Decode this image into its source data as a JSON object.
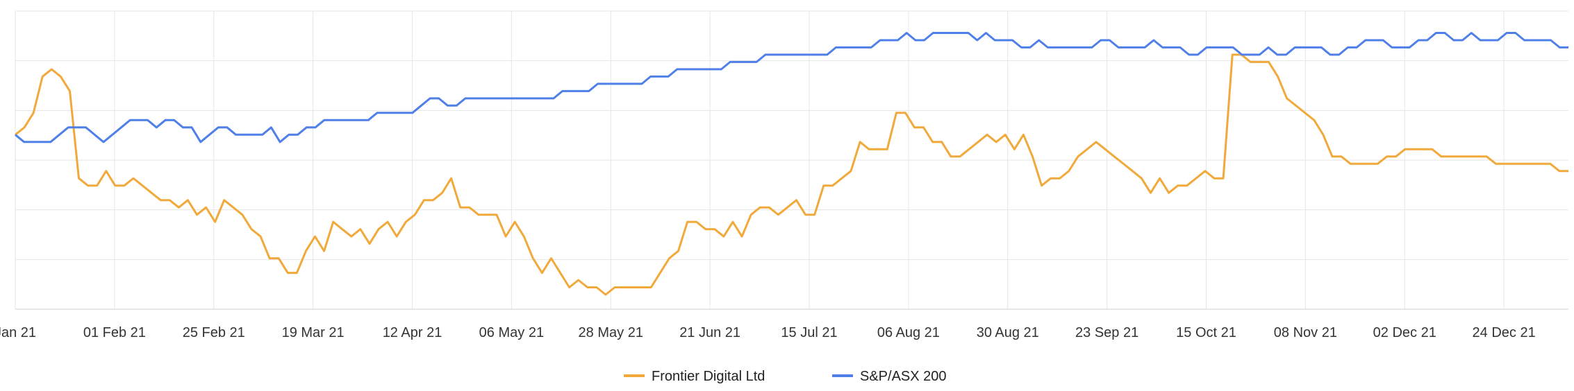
{
  "chart_data": {
    "type": "line",
    "title": "",
    "xlabel": "",
    "ylabel": "",
    "x_ticks": [
      "Jan 21",
      "01 Feb 21",
      "25 Feb 21",
      "19 Mar 21",
      "12 Apr 21",
      "06 May 21",
      "28 May 21",
      "21 Jun 21",
      "15 Jul 21",
      "06 Aug 21",
      "30 Aug 21",
      "23 Sep 21",
      "15 Oct 21",
      "08 Nov 21",
      "02 Dec 21",
      "24 Dec 21"
    ],
    "y_tick_labels_shown": false,
    "grid": true,
    "legend_position": "bottom-center",
    "series": [
      {
        "name": "Frontier Digital Ltd",
        "color": "#F0A93A",
        "values": [
          0,
          1,
          3,
          8,
          9,
          8,
          6,
          -6,
          -7,
          -7,
          -5,
          -7,
          -7,
          -6,
          -7,
          -8,
          -9,
          -9,
          -10,
          -9,
          -11,
          -10,
          -12,
          -9,
          -10,
          -11,
          -13,
          -14,
          -17,
          -17,
          -19,
          -19,
          -16,
          -14,
          -16,
          -12,
          -13,
          -14,
          -13,
          -15,
          -13,
          -12,
          -14,
          -12,
          -11,
          -9,
          -9,
          -8,
          -6,
          -10,
          -10,
          -11,
          -11,
          -11,
          -14,
          -12,
          -14,
          -17,
          -19,
          -17,
          -19,
          -21,
          -20,
          -21,
          -21,
          -22,
          -21,
          -21,
          -21,
          -21,
          -21,
          -19,
          -17,
          -16,
          -12,
          -12,
          -13,
          -13,
          -14,
          -12,
          -14,
          -11,
          -10,
          -10,
          -11,
          -10,
          -9,
          -11,
          -11,
          -7,
          -7,
          -6,
          -5,
          -1,
          -2,
          -2,
          -2,
          3,
          3,
          1,
          1,
          -1,
          -1,
          -3,
          -3,
          -2,
          -1,
          0,
          -1,
          0,
          -2,
          0,
          -3,
          -7,
          -6,
          -6,
          -5,
          -3,
          -2,
          -1,
          -2,
          -3,
          -4,
          -5,
          -6,
          -8,
          -6,
          -8,
          -7,
          -7,
          -6,
          -5,
          -6,
          -6,
          11,
          11,
          10,
          10,
          10,
          8,
          5,
          4,
          3,
          2,
          0,
          -3,
          -3,
          -4,
          -4,
          -4,
          -4,
          -3,
          -3,
          -2,
          -2,
          -2,
          -2,
          -3,
          -3,
          -3,
          -3,
          -3,
          -3,
          -4,
          -4,
          -4,
          -4,
          -4,
          -4,
          -4,
          -5,
          -5
        ],
        "note_values_are_relative_percent_change": true
      },
      {
        "name": "S&P/ASX 200",
        "color": "#4F7FE8",
        "values": [
          0,
          -1,
          -1,
          -1,
          -1,
          0,
          1,
          1,
          1,
          0,
          -1,
          0,
          1,
          2,
          2,
          2,
          1,
          2,
          2,
          1,
          1,
          -1,
          0,
          1,
          1,
          0,
          0,
          0,
          0,
          1,
          -1,
          0,
          0,
          1,
          1,
          2,
          2,
          2,
          2,
          2,
          2,
          3,
          3,
          3,
          3,
          3,
          4,
          5,
          5,
          4,
          4,
          5,
          5,
          5,
          5,
          5,
          5,
          5,
          5,
          5,
          5,
          5,
          6,
          6,
          6,
          6,
          7,
          7,
          7,
          7,
          7,
          7,
          8,
          8,
          8,
          9,
          9,
          9,
          9,
          9,
          9,
          10,
          10,
          10,
          10,
          11,
          11,
          11,
          11,
          11,
          11,
          11,
          11,
          12,
          12,
          12,
          12,
          12,
          13,
          13,
          13,
          14,
          13,
          13,
          14,
          14,
          14,
          14,
          14,
          13,
          14,
          13,
          13,
          13,
          12,
          12,
          13,
          12,
          12,
          12,
          12,
          12,
          12,
          13,
          13,
          12,
          12,
          12,
          12,
          13,
          12,
          12,
          12,
          11,
          11,
          12,
          12,
          12,
          12,
          11,
          11,
          11,
          12,
          11,
          11,
          12,
          12,
          12,
          12,
          11,
          11,
          12,
          12,
          13,
          13,
          13,
          12,
          12,
          12,
          13,
          13,
          14,
          14,
          13,
          13,
          14,
          13,
          13,
          13,
          14,
          14,
          13,
          13,
          13,
          13,
          12,
          12
        ],
        "note_values_are_relative_percent_change": true
      }
    ]
  }
}
